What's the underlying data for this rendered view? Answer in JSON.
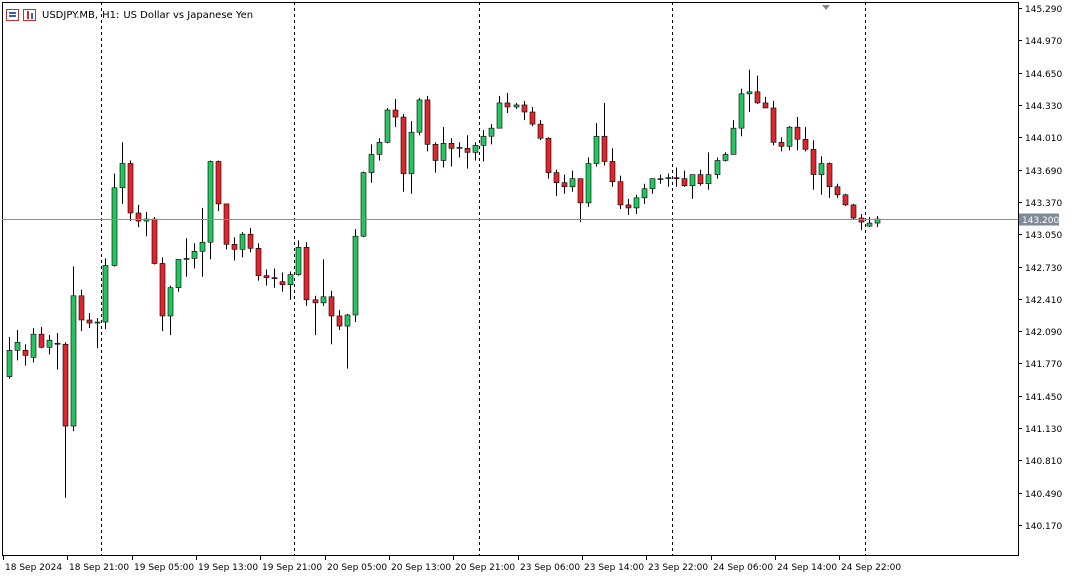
{
  "window": {
    "symbol": "USDJPY.MB,",
    "timeframe": "H1:",
    "description": "US Dollar vs Japanese Yen",
    "icons": [
      "chart-table-icon",
      "chart-candles-icon"
    ]
  },
  "colors": {
    "bull": "#22c55e",
    "bear": "#e0262b",
    "wick": "#000000",
    "price_line": "#7d9a7d",
    "price_label_bg": "#7e8a99",
    "axis": "#000000",
    "separator": "#000000",
    "background": "#ffffff"
  },
  "chart_data": {
    "type": "candlestick",
    "symbol": "USDJPY.MB",
    "timeframe": "H1",
    "title": "US Dollar vs Japanese Yen",
    "current_price": "143.200",
    "ylim": [
      139.97,
      145.37
    ],
    "y_ticks": [
      "145.290",
      "144.970",
      "144.650",
      "144.330",
      "144.010",
      "143.690",
      "143.370",
      "143.050",
      "142.730",
      "142.410",
      "142.090",
      "141.770",
      "141.450",
      "141.130",
      "140.810",
      "140.490",
      "140.170"
    ],
    "x_labels": [
      "18 Sep 2024",
      "18 Sep 21:00",
      "19 Sep 05:00",
      "19 Sep 13:00",
      "19 Sep 21:00",
      "20 Sep 05:00",
      "20 Sep 13:00",
      "20 Sep 21:00",
      "23 Sep 06:00",
      "23 Sep 14:00",
      "23 Sep 22:00",
      "24 Sep 06:00",
      "24 Sep 14:00",
      "24 Sep 22:00"
    ],
    "day_separators_after_bar": [
      11,
      35,
      58,
      82,
      106
    ],
    "bars_per_label": 8,
    "grid": false,
    "candles": [
      {
        "o": 141.64,
        "h": 142.03,
        "l": 141.62,
        "c": 141.9
      },
      {
        "o": 141.9,
        "h": 142.1,
        "l": 141.8,
        "c": 141.98
      },
      {
        "o": 141.9,
        "h": 141.96,
        "l": 141.75,
        "c": 141.85
      },
      {
        "o": 141.83,
        "h": 142.12,
        "l": 141.78,
        "c": 142.06
      },
      {
        "o": 142.06,
        "h": 142.13,
        "l": 141.92,
        "c": 141.93
      },
      {
        "o": 141.93,
        "h": 142.05,
        "l": 141.86,
        "c": 142.0
      },
      {
        "o": 141.97,
        "h": 142.07,
        "l": 141.71,
        "c": 141.96
      },
      {
        "o": 141.96,
        "h": 141.98,
        "l": 140.44,
        "c": 141.15
      },
      {
        "o": 141.15,
        "h": 142.73,
        "l": 141.1,
        "c": 142.44
      },
      {
        "o": 142.44,
        "h": 142.5,
        "l": 142.09,
        "c": 142.2
      },
      {
        "o": 142.2,
        "h": 142.27,
        "l": 142.12,
        "c": 142.17
      },
      {
        "o": 142.17,
        "h": 142.22,
        "l": 141.92,
        "c": 142.18
      },
      {
        "o": 142.18,
        "h": 142.81,
        "l": 142.11,
        "c": 142.74
      },
      {
        "o": 142.74,
        "h": 143.65,
        "l": 142.73,
        "c": 143.51
      },
      {
        "o": 143.51,
        "h": 143.96,
        "l": 143.35,
        "c": 143.75
      },
      {
        "o": 143.75,
        "h": 143.78,
        "l": 143.18,
        "c": 143.26
      },
      {
        "o": 143.26,
        "h": 143.34,
        "l": 143.12,
        "c": 143.18
      },
      {
        "o": 143.18,
        "h": 143.27,
        "l": 143.03,
        "c": 143.2
      },
      {
        "o": 143.2,
        "h": 143.22,
        "l": 142.75,
        "c": 142.76
      },
      {
        "o": 142.76,
        "h": 142.82,
        "l": 142.09,
        "c": 142.24
      },
      {
        "o": 142.24,
        "h": 142.54,
        "l": 142.05,
        "c": 142.52
      },
      {
        "o": 142.52,
        "h": 142.79,
        "l": 142.48,
        "c": 142.8
      },
      {
        "o": 142.8,
        "h": 143.01,
        "l": 142.63,
        "c": 142.81
      },
      {
        "o": 142.81,
        "h": 142.96,
        "l": 142.71,
        "c": 142.88
      },
      {
        "o": 142.88,
        "h": 143.31,
        "l": 142.63,
        "c": 142.97
      },
      {
        "o": 142.97,
        "h": 143.78,
        "l": 142.8,
        "c": 143.77
      },
      {
        "o": 143.77,
        "h": 143.78,
        "l": 143.28,
        "c": 143.35
      },
      {
        "o": 143.35,
        "h": 143.35,
        "l": 142.9,
        "c": 142.95
      },
      {
        "o": 142.95,
        "h": 143.02,
        "l": 142.79,
        "c": 142.9
      },
      {
        "o": 142.9,
        "h": 143.07,
        "l": 142.82,
        "c": 143.05
      },
      {
        "o": 143.05,
        "h": 143.11,
        "l": 142.87,
        "c": 142.91
      },
      {
        "o": 142.91,
        "h": 142.96,
        "l": 142.59,
        "c": 142.64
      },
      {
        "o": 142.64,
        "h": 142.7,
        "l": 142.54,
        "c": 142.62
      },
      {
        "o": 142.62,
        "h": 142.71,
        "l": 142.52,
        "c": 142.61
      },
      {
        "o": 142.58,
        "h": 142.67,
        "l": 142.48,
        "c": 142.55
      },
      {
        "o": 142.55,
        "h": 142.68,
        "l": 142.4,
        "c": 142.65
      },
      {
        "o": 142.65,
        "h": 142.99,
        "l": 142.64,
        "c": 142.92
      },
      {
        "o": 142.92,
        "h": 142.97,
        "l": 142.34,
        "c": 142.4
      },
      {
        "o": 142.4,
        "h": 142.44,
        "l": 142.05,
        "c": 142.37
      },
      {
        "o": 142.37,
        "h": 142.8,
        "l": 142.34,
        "c": 142.43
      },
      {
        "o": 142.43,
        "h": 142.49,
        "l": 141.96,
        "c": 142.24
      },
      {
        "o": 142.24,
        "h": 142.3,
        "l": 142.1,
        "c": 142.14
      },
      {
        "o": 142.14,
        "h": 142.26,
        "l": 141.72,
        "c": 142.25
      },
      {
        "o": 142.25,
        "h": 143.1,
        "l": 142.18,
        "c": 143.03
      },
      {
        "o": 143.03,
        "h": 143.67,
        "l": 143.02,
        "c": 143.66
      },
      {
        "o": 143.66,
        "h": 143.94,
        "l": 143.56,
        "c": 143.84
      },
      {
        "o": 143.84,
        "h": 144.0,
        "l": 143.78,
        "c": 143.96
      },
      {
        "o": 143.96,
        "h": 144.3,
        "l": 143.95,
        "c": 144.28
      },
      {
        "o": 144.28,
        "h": 144.39,
        "l": 144.11,
        "c": 144.21
      },
      {
        "o": 144.21,
        "h": 144.24,
        "l": 143.47,
        "c": 143.65
      },
      {
        "o": 143.65,
        "h": 144.17,
        "l": 143.45,
        "c": 144.06
      },
      {
        "o": 144.06,
        "h": 144.4,
        "l": 144.03,
        "c": 144.38
      },
      {
        "o": 144.38,
        "h": 144.42,
        "l": 143.87,
        "c": 143.94
      },
      {
        "o": 143.94,
        "h": 143.96,
        "l": 143.66,
        "c": 143.78
      },
      {
        "o": 143.78,
        "h": 144.11,
        "l": 143.71,
        "c": 143.95
      },
      {
        "o": 143.95,
        "h": 144.0,
        "l": 143.72,
        "c": 143.9
      },
      {
        "o": 143.9,
        "h": 143.96,
        "l": 143.81,
        "c": 143.91
      },
      {
        "o": 143.9,
        "h": 144.03,
        "l": 143.7,
        "c": 143.86
      },
      {
        "o": 143.86,
        "h": 143.96,
        "l": 143.78,
        "c": 143.93
      },
      {
        "o": 143.93,
        "h": 144.08,
        "l": 143.77,
        "c": 144.02
      },
      {
        "o": 144.02,
        "h": 144.14,
        "l": 143.94,
        "c": 144.1
      },
      {
        "o": 144.1,
        "h": 144.42,
        "l": 144.1,
        "c": 144.35
      },
      {
        "o": 144.35,
        "h": 144.45,
        "l": 144.25,
        "c": 144.31
      },
      {
        "o": 144.31,
        "h": 144.35,
        "l": 144.29,
        "c": 144.33
      },
      {
        "o": 144.33,
        "h": 144.37,
        "l": 144.18,
        "c": 144.26
      },
      {
        "o": 144.26,
        "h": 144.31,
        "l": 144.12,
        "c": 144.14
      },
      {
        "o": 144.14,
        "h": 144.18,
        "l": 143.98,
        "c": 144.0
      },
      {
        "o": 144.0,
        "h": 144.01,
        "l": 143.6,
        "c": 143.66
      },
      {
        "o": 143.66,
        "h": 143.69,
        "l": 143.43,
        "c": 143.56
      },
      {
        "o": 143.56,
        "h": 143.64,
        "l": 143.45,
        "c": 143.52
      },
      {
        "o": 143.52,
        "h": 143.68,
        "l": 143.47,
        "c": 143.6
      },
      {
        "o": 143.6,
        "h": 143.6,
        "l": 143.17,
        "c": 143.36
      },
      {
        "o": 143.36,
        "h": 143.81,
        "l": 143.32,
        "c": 143.75
      },
      {
        "o": 143.75,
        "h": 144.15,
        "l": 143.72,
        "c": 144.02
      },
      {
        "o": 144.02,
        "h": 144.35,
        "l": 143.73,
        "c": 143.77
      },
      {
        "o": 143.77,
        "h": 143.9,
        "l": 143.52,
        "c": 143.57
      },
      {
        "o": 143.57,
        "h": 143.63,
        "l": 143.3,
        "c": 143.34
      },
      {
        "o": 143.34,
        "h": 143.4,
        "l": 143.24,
        "c": 143.31
      },
      {
        "o": 143.31,
        "h": 143.44,
        "l": 143.25,
        "c": 143.41
      },
      {
        "o": 143.41,
        "h": 143.55,
        "l": 143.35,
        "c": 143.5
      },
      {
        "o": 143.5,
        "h": 143.6,
        "l": 143.45,
        "c": 143.6
      },
      {
        "o": 143.6,
        "h": 143.64,
        "l": 143.55,
        "c": 143.6
      },
      {
        "o": 143.6,
        "h": 143.65,
        "l": 143.52,
        "c": 143.61
      },
      {
        "o": 143.61,
        "h": 143.71,
        "l": 143.52,
        "c": 143.6
      },
      {
        "o": 143.6,
        "h": 143.68,
        "l": 143.52,
        "c": 143.53
      },
      {
        "o": 143.53,
        "h": 143.64,
        "l": 143.4,
        "c": 143.64
      },
      {
        "o": 143.64,
        "h": 143.69,
        "l": 143.53,
        "c": 143.55
      },
      {
        "o": 143.55,
        "h": 143.86,
        "l": 143.49,
        "c": 143.64
      },
      {
        "o": 143.64,
        "h": 143.81,
        "l": 143.6,
        "c": 143.78
      },
      {
        "o": 143.78,
        "h": 143.86,
        "l": 143.77,
        "c": 143.84
      },
      {
        "o": 143.84,
        "h": 144.18,
        "l": 143.84,
        "c": 144.1
      },
      {
        "o": 144.1,
        "h": 144.49,
        "l": 144.02,
        "c": 144.44
      },
      {
        "o": 144.44,
        "h": 144.68,
        "l": 144.26,
        "c": 144.46
      },
      {
        "o": 144.46,
        "h": 144.62,
        "l": 144.34,
        "c": 144.35
      },
      {
        "o": 144.35,
        "h": 144.41,
        "l": 144.3,
        "c": 144.3
      },
      {
        "o": 144.3,
        "h": 144.37,
        "l": 143.93,
        "c": 143.96
      },
      {
        "o": 143.96,
        "h": 144.01,
        "l": 143.87,
        "c": 143.92
      },
      {
        "o": 143.92,
        "h": 144.12,
        "l": 143.88,
        "c": 144.11
      },
      {
        "o": 144.11,
        "h": 144.21,
        "l": 143.88,
        "c": 143.99
      },
      {
        "o": 143.99,
        "h": 144.11,
        "l": 143.87,
        "c": 143.89
      },
      {
        "o": 143.89,
        "h": 143.98,
        "l": 143.49,
        "c": 143.64
      },
      {
        "o": 143.64,
        "h": 143.82,
        "l": 143.44,
        "c": 143.75
      },
      {
        "o": 143.75,
        "h": 143.76,
        "l": 143.41,
        "c": 143.52
      },
      {
        "o": 143.52,
        "h": 143.55,
        "l": 143.41,
        "c": 143.44
      },
      {
        "o": 143.44,
        "h": 143.45,
        "l": 143.33,
        "c": 143.34
      },
      {
        "o": 143.34,
        "h": 143.35,
        "l": 143.19,
        "c": 143.21
      },
      {
        "o": 143.21,
        "h": 143.25,
        "l": 143.09,
        "c": 143.17
      },
      {
        "o": 143.13,
        "h": 143.22,
        "l": 143.12,
        "c": 143.16
      },
      {
        "o": 143.16,
        "h": 143.23,
        "l": 143.12,
        "c": 143.2
      }
    ]
  }
}
